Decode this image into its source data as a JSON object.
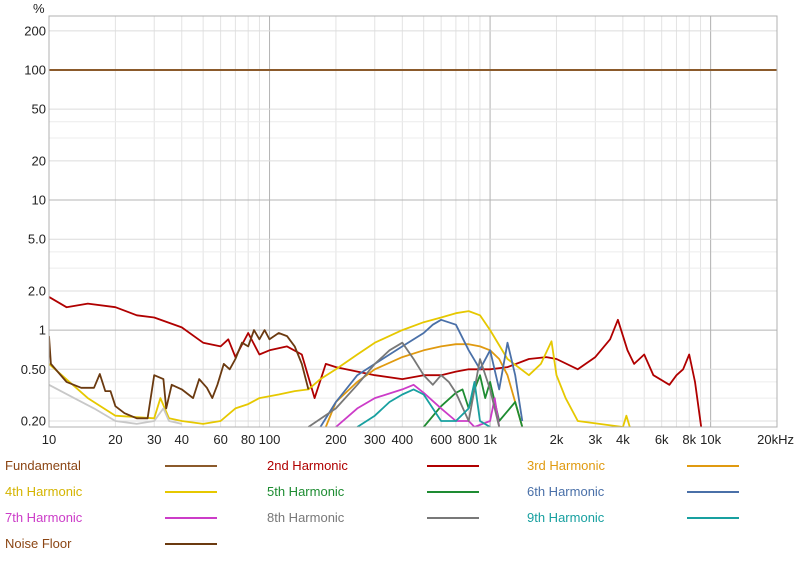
{
  "chart_data": {
    "type": "line",
    "title": "",
    "y_unit": "%",
    "xscale": "log",
    "yscale": "log",
    "xlim": [
      10,
      20000
    ],
    "ylim": [
      0.18,
      260
    ],
    "grid": true,
    "legend_position": "bottom",
    "x_ticks": [
      {
        "v": 10,
        "label": "10"
      },
      {
        "v": 20,
        "label": "20"
      },
      {
        "v": 30,
        "label": "30"
      },
      {
        "v": 40,
        "label": "40"
      },
      {
        "v": 60,
        "label": "60"
      },
      {
        "v": 80,
        "label": "80"
      },
      {
        "v": 100,
        "label": "100"
      },
      {
        "v": 200,
        "label": "200"
      },
      {
        "v": 300,
        "label": "300"
      },
      {
        "v": 400,
        "label": "400"
      },
      {
        "v": 600,
        "label": "600"
      },
      {
        "v": 800,
        "label": "800"
      },
      {
        "v": 1000,
        "label": "1k"
      },
      {
        "v": 2000,
        "label": "2k"
      },
      {
        "v": 3000,
        "label": "3k"
      },
      {
        "v": 4000,
        "label": "4k"
      },
      {
        "v": 6000,
        "label": "6k"
      },
      {
        "v": 8000,
        "label": "8k"
      },
      {
        "v": 10000,
        "label": "10k"
      },
      {
        "v": 20000,
        "label": "20kHz"
      }
    ],
    "y_ticks": [
      {
        "v": 200,
        "label": "200"
      },
      {
        "v": 100,
        "label": "100"
      },
      {
        "v": 50,
        "label": "50"
      },
      {
        "v": 20,
        "label": "20"
      },
      {
        "v": 10,
        "label": "10"
      },
      {
        "v": 5,
        "label": "5.0"
      },
      {
        "v": 2,
        "label": "2.0"
      },
      {
        "v": 1,
        "label": "1"
      },
      {
        "v": 0.5,
        "label": "0.50"
      },
      {
        "v": 0.2,
        "label": "0.20"
      }
    ],
    "series": [
      {
        "name": "Fundamental",
        "color": "#8B5A2B",
        "points": [
          [
            10,
            100
          ],
          [
            20000,
            100
          ]
        ]
      },
      {
        "name": "2nd Harmonic",
        "color": "#B00000",
        "points": [
          [
            10,
            1.8
          ],
          [
            12,
            1.5
          ],
          [
            15,
            1.6
          ],
          [
            20,
            1.5
          ],
          [
            25,
            1.3
          ],
          [
            30,
            1.25
          ],
          [
            40,
            1.05
          ],
          [
            50,
            0.8
          ],
          [
            60,
            0.75
          ],
          [
            65,
            0.85
          ],
          [
            70,
            0.62
          ],
          [
            80,
            0.95
          ],
          [
            90,
            0.65
          ],
          [
            100,
            0.7
          ],
          [
            120,
            0.75
          ],
          [
            140,
            0.65
          ],
          [
            160,
            0.3
          ],
          [
            180,
            0.55
          ],
          [
            200,
            0.52
          ],
          [
            300,
            0.45
          ],
          [
            400,
            0.42
          ],
          [
            500,
            0.45
          ],
          [
            600,
            0.45
          ],
          [
            700,
            0.48
          ],
          [
            800,
            0.5
          ],
          [
            1000,
            0.5
          ],
          [
            1200,
            0.52
          ],
          [
            1500,
            0.6
          ],
          [
            1800,
            0.62
          ],
          [
            2000,
            0.6
          ],
          [
            2500,
            0.5
          ],
          [
            3000,
            0.62
          ],
          [
            3500,
            0.85
          ],
          [
            3800,
            1.2
          ],
          [
            4200,
            0.7
          ],
          [
            4500,
            0.55
          ],
          [
            5000,
            0.65
          ],
          [
            5500,
            0.45
          ],
          [
            6500,
            0.38
          ],
          [
            7000,
            0.45
          ],
          [
            7500,
            0.5
          ],
          [
            8000,
            0.65
          ],
          [
            8500,
            0.4
          ],
          [
            9200,
            0.15
          ]
        ]
      },
      {
        "name": "3rd Harmonic",
        "color": "#E09A10",
        "points": [
          [
            180,
            0.18
          ],
          [
            200,
            0.28
          ],
          [
            250,
            0.4
          ],
          [
            300,
            0.5
          ],
          [
            400,
            0.62
          ],
          [
            500,
            0.7
          ],
          [
            600,
            0.75
          ],
          [
            700,
            0.78
          ],
          [
            800,
            0.78
          ],
          [
            900,
            0.75
          ],
          [
            1000,
            0.7
          ],
          [
            1100,
            0.6
          ],
          [
            1200,
            0.45
          ],
          [
            1400,
            0.18
          ]
        ]
      },
      {
        "name": "4th Harmonic",
        "color": "#E6C800",
        "points": [
          [
            10,
            0.55
          ],
          [
            15,
            0.3
          ],
          [
            20,
            0.22
          ],
          [
            30,
            0.21
          ],
          [
            32,
            0.3
          ],
          [
            35,
            0.21
          ],
          [
            40,
            0.2
          ],
          [
            50,
            0.19
          ],
          [
            60,
            0.2
          ],
          [
            70,
            0.25
          ],
          [
            80,
            0.27
          ],
          [
            90,
            0.3
          ],
          [
            110,
            0.32
          ],
          [
            130,
            0.34
          ],
          [
            150,
            0.35
          ],
          [
            170,
            0.42
          ],
          [
            200,
            0.5
          ],
          [
            250,
            0.65
          ],
          [
            300,
            0.8
          ],
          [
            400,
            1.0
          ],
          [
            500,
            1.15
          ],
          [
            600,
            1.25
          ],
          [
            700,
            1.35
          ],
          [
            800,
            1.4
          ],
          [
            900,
            1.3
          ],
          [
            1000,
            1.0
          ],
          [
            1200,
            0.6
          ],
          [
            1500,
            0.45
          ],
          [
            1700,
            0.55
          ],
          [
            1900,
            0.82
          ],
          [
            2000,
            0.45
          ],
          [
            2200,
            0.3
          ],
          [
            2500,
            0.2
          ],
          [
            4000,
            0.18
          ],
          [
            4150,
            0.22
          ],
          [
            4300,
            0.18
          ]
        ]
      },
      {
        "name": "5th Harmonic",
        "color": "#1E8C32",
        "points": [
          [
            500,
            0.18
          ],
          [
            600,
            0.26
          ],
          [
            700,
            0.33
          ],
          [
            750,
            0.35
          ],
          [
            800,
            0.25
          ],
          [
            850,
            0.35
          ],
          [
            900,
            0.45
          ],
          [
            950,
            0.3
          ],
          [
            1000,
            0.4
          ],
          [
            1100,
            0.2
          ],
          [
            1300,
            0.28
          ],
          [
            1400,
            0.18
          ]
        ]
      },
      {
        "name": "6th Harmonic",
        "color": "#4A70A8",
        "points": [
          [
            170,
            0.18
          ],
          [
            200,
            0.28
          ],
          [
            250,
            0.45
          ],
          [
            300,
            0.55
          ],
          [
            400,
            0.75
          ],
          [
            500,
            0.95
          ],
          [
            550,
            1.1
          ],
          [
            600,
            1.2
          ],
          [
            700,
            1.1
          ],
          [
            800,
            0.7
          ],
          [
            900,
            0.5
          ],
          [
            1000,
            0.7
          ],
          [
            1100,
            0.35
          ],
          [
            1200,
            0.8
          ],
          [
            1300,
            0.45
          ],
          [
            1400,
            0.2
          ]
        ]
      },
      {
        "name": "7th Harmonic",
        "color": "#CC3CC8",
        "points": [
          [
            200,
            0.18
          ],
          [
            250,
            0.25
          ],
          [
            300,
            0.3
          ],
          [
            400,
            0.35
          ],
          [
            450,
            0.38
          ],
          [
            500,
            0.33
          ],
          [
            600,
            0.25
          ],
          [
            700,
            0.2
          ],
          [
            800,
            0.2
          ],
          [
            850,
            0.18
          ],
          [
            1000,
            0.2
          ],
          [
            1050,
            0.3
          ],
          [
            1100,
            0.18
          ]
        ]
      },
      {
        "name": "8th Harmonic",
        "color": "#787878",
        "points": [
          [
            150,
            0.18
          ],
          [
            200,
            0.25
          ],
          [
            250,
            0.38
          ],
          [
            300,
            0.55
          ],
          [
            350,
            0.7
          ],
          [
            400,
            0.8
          ],
          [
            450,
            0.6
          ],
          [
            500,
            0.45
          ],
          [
            550,
            0.38
          ],
          [
            600,
            0.45
          ],
          [
            650,
            0.4
          ],
          [
            700,
            0.33
          ],
          [
            800,
            0.2
          ],
          [
            850,
            0.35
          ],
          [
            900,
            0.6
          ],
          [
            1000,
            0.35
          ],
          [
            1100,
            0.18
          ]
        ]
      },
      {
        "name": "9th Harmonic",
        "color": "#18A0A0",
        "points": [
          [
            250,
            0.18
          ],
          [
            300,
            0.22
          ],
          [
            350,
            0.28
          ],
          [
            400,
            0.32
          ],
          [
            450,
            0.35
          ],
          [
            500,
            0.32
          ],
          [
            550,
            0.25
          ],
          [
            600,
            0.2
          ],
          [
            700,
            0.2
          ],
          [
            800,
            0.25
          ],
          [
            850,
            0.4
          ],
          [
            900,
            0.2
          ],
          [
            1000,
            0.18
          ]
        ]
      },
      {
        "name": "Noise Floor",
        "color": "#6B3A10",
        "points": [
          [
            10,
            0.9
          ],
          [
            10.2,
            0.55
          ],
          [
            12,
            0.4
          ],
          [
            14,
            0.36
          ],
          [
            16,
            0.36
          ],
          [
            17,
            0.46
          ],
          [
            18,
            0.34
          ],
          [
            19,
            0.34
          ],
          [
            20,
            0.26
          ],
          [
            22,
            0.23
          ],
          [
            25,
            0.21
          ],
          [
            28,
            0.21
          ],
          [
            30,
            0.45
          ],
          [
            33,
            0.42
          ],
          [
            34,
            0.25
          ],
          [
            36,
            0.38
          ],
          [
            40,
            0.35
          ],
          [
            45,
            0.3
          ],
          [
            48,
            0.42
          ],
          [
            52,
            0.36
          ],
          [
            55,
            0.3
          ],
          [
            58,
            0.38
          ],
          [
            62,
            0.55
          ],
          [
            66,
            0.5
          ],
          [
            70,
            0.6
          ],
          [
            75,
            0.8
          ],
          [
            80,
            0.75
          ],
          [
            85,
            1.0
          ],
          [
            90,
            0.85
          ],
          [
            95,
            1.0
          ],
          [
            100,
            0.85
          ],
          [
            110,
            0.95
          ],
          [
            120,
            0.9
          ],
          [
            130,
            0.75
          ],
          [
            140,
            0.55
          ],
          [
            150,
            0.35
          ]
        ]
      },
      {
        "name": "",
        "color": "#C8C8C8",
        "points": [
          [
            10,
            0.38
          ],
          [
            13,
            0.3
          ],
          [
            16,
            0.25
          ],
          [
            20,
            0.2
          ],
          [
            25,
            0.19
          ],
          [
            30,
            0.2
          ],
          [
            33,
            0.25
          ],
          [
            35,
            0.2
          ],
          [
            40,
            0.19
          ]
        ]
      }
    ],
    "legend": [
      {
        "label": "Fundamental",
        "color": "#8B5A2B",
        "text_color": "#8B4513"
      },
      {
        "label": "2nd Harmonic",
        "color": "#B00000",
        "text_color": "#B00000"
      },
      {
        "label": "3rd Harmonic",
        "color": "#E09A10",
        "text_color": "#E09A10"
      },
      {
        "label": "4th Harmonic",
        "color": "#E6C800",
        "text_color": "#D4B400"
      },
      {
        "label": "5th Harmonic",
        "color": "#1E8C32",
        "text_color": "#1E8C32"
      },
      {
        "label": "6th Harmonic",
        "color": "#4A70A8",
        "text_color": "#4A70A8"
      },
      {
        "label": "7th Harmonic",
        "color": "#CC3CC8",
        "text_color": "#CC3CC8"
      },
      {
        "label": "8th Harmonic",
        "color": "#787878",
        "text_color": "#787878"
      },
      {
        "label": "9th Harmonic",
        "color": "#18A0A0",
        "text_color": "#18A0A0"
      },
      {
        "label": "Noise Floor",
        "color": "#6B3A10",
        "text_color": "#8B4513"
      }
    ]
  }
}
